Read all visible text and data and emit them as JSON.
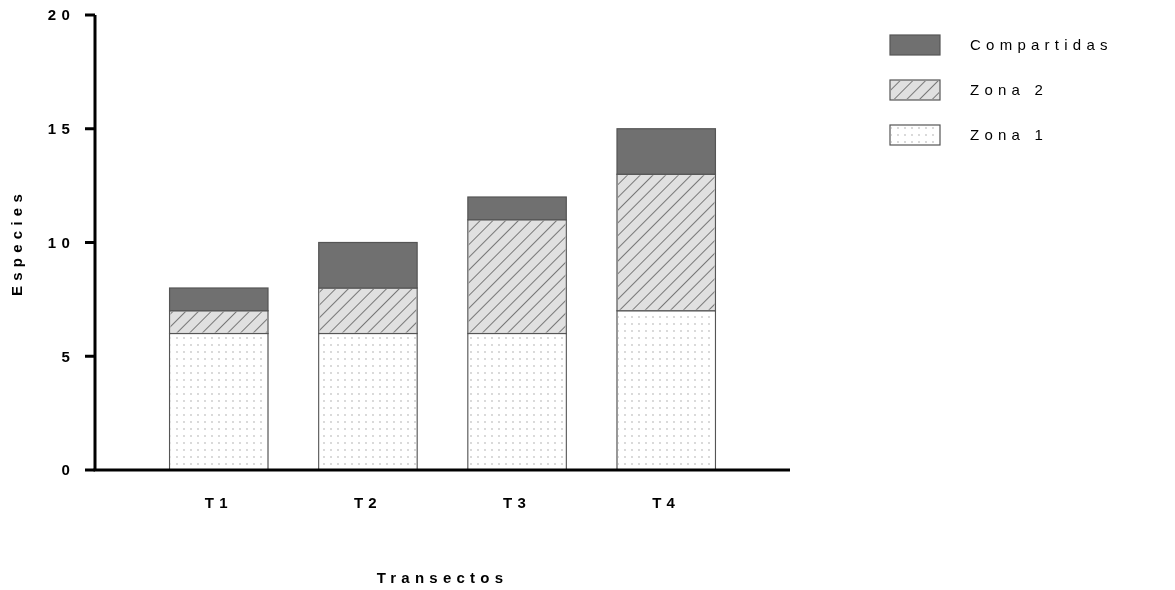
{
  "chart_data": {
    "type": "bar",
    "stacked": true,
    "xlabel": "Transectos",
    "ylabel": "Especies",
    "categories": [
      "T1",
      "T2",
      "T3",
      "T4"
    ],
    "series": [
      {
        "name": "Zona 1",
        "color": "#ffffff",
        "values": [
          6,
          6,
          6,
          7
        ]
      },
      {
        "name": "Zona 2",
        "color": "#e0e0e0",
        "values": [
          1,
          2,
          5,
          6
        ]
      },
      {
        "name": "Compartidas",
        "color": "#707070",
        "values": [
          1,
          2,
          1,
          2
        ]
      }
    ],
    "ylim": [
      0,
      20
    ],
    "yticks": [
      0,
      5,
      10,
      15,
      20
    ],
    "grid": false,
    "legend": "top right"
  }
}
